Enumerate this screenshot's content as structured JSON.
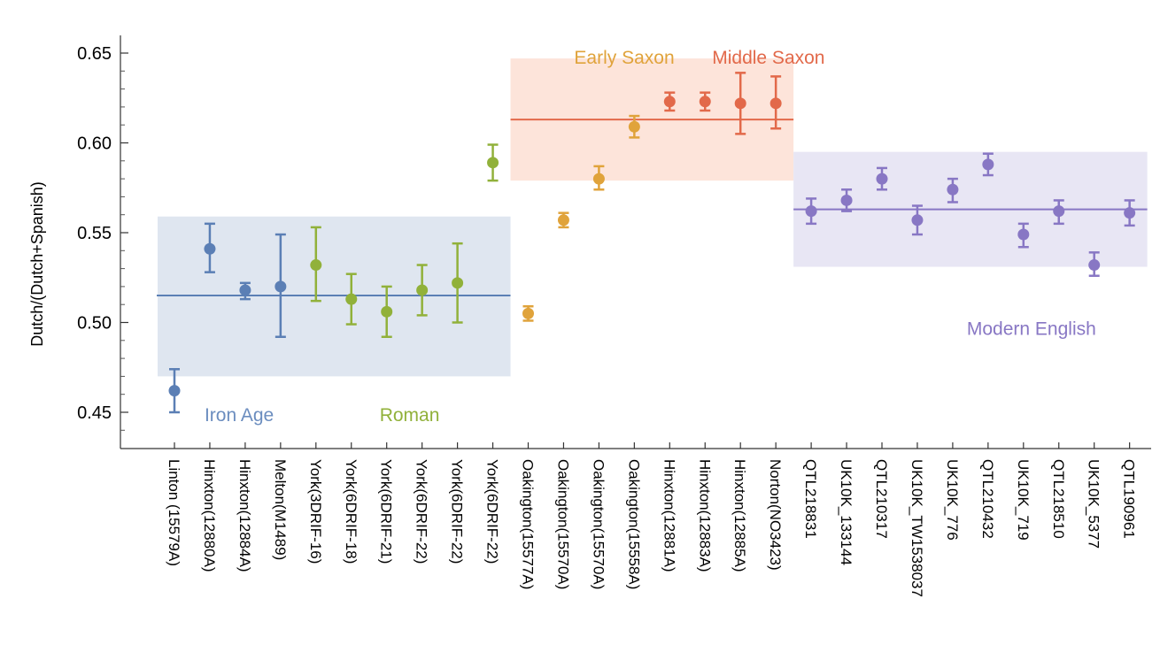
{
  "chart_data": {
    "type": "scatter",
    "ylabel": "Dutch/(Dutch+Spanish)",
    "xlabel": "",
    "ylim": [
      0.43,
      0.665
    ],
    "yticks": [
      0.45,
      0.5,
      0.55,
      0.6,
      0.65
    ],
    "ytick_labels": [
      "0.45",
      "0.50",
      "0.55",
      "0.60",
      "0.65"
    ],
    "grid": false,
    "categories": [
      "Linton (15579A)",
      "Hinxton(12880A)",
      "Hinxton(12884A)",
      "Melton(M1489)",
      "York(3DRIF-16)",
      "York(6DRIF-18)",
      "York(6DRIF-21)",
      "York(6DRIF-22)",
      "York(6DRIF-22)",
      "York(6DRIF-22)",
      "Oakington(15577A)",
      "Oakington(15570A)",
      "Oakington(15570A)",
      "Oakington(15558A)",
      "Hinxton(12881A)",
      "Hinxton(12883A)",
      "Hinxton(12885A)",
      "Norton(NO3423)",
      "QTL218831",
      "UK10K_133144",
      "QTL210317",
      "UK10K_TW1538037",
      "UK10K_776",
      "QTL210432",
      "UK10K_719",
      "QTL218510",
      "UK10K_5377",
      "QTL190961"
    ],
    "series": [
      {
        "name": "Iron Age",
        "color": "#5b7fb5",
        "start": 0,
        "end": 3,
        "values": [
          0.462,
          0.541,
          0.518,
          0.52
        ],
        "err_low": [
          0.45,
          0.528,
          0.513,
          0.492
        ],
        "err_high": [
          0.474,
          0.555,
          0.522,
          0.549
        ]
      },
      {
        "name": "Roman",
        "color": "#91b13a",
        "start": 4,
        "end": 9,
        "values": [
          0.532,
          0.513,
          0.506,
          0.518,
          0.522,
          0.589
        ],
        "err_low": [
          0.512,
          0.499,
          0.492,
          0.504,
          0.5,
          0.579
        ],
        "err_high": [
          0.553,
          0.527,
          0.52,
          0.532,
          0.544,
          0.599
        ]
      },
      {
        "name": "Early Saxon",
        "color": "#e0a33b",
        "start": 10,
        "end": 13,
        "values": [
          0.505,
          0.557,
          0.58,
          0.609
        ],
        "err_low": [
          0.501,
          0.553,
          0.574,
          0.603
        ],
        "err_high": [
          0.509,
          0.561,
          0.587,
          0.615
        ]
      },
      {
        "name": "Middle Saxon",
        "color": "#e2694a",
        "start": 14,
        "end": 17,
        "values": [
          0.623,
          0.623,
          0.622,
          0.622
        ],
        "err_low": [
          0.618,
          0.618,
          0.605,
          0.608
        ],
        "err_high": [
          0.628,
          0.628,
          0.639,
          0.637
        ]
      },
      {
        "name": "Modern English",
        "color": "#8877c4",
        "start": 18,
        "end": 27,
        "values": [
          0.562,
          0.568,
          0.58,
          0.557,
          0.574,
          0.588,
          0.549,
          0.562,
          0.532,
          0.561
        ],
        "err_low": [
          0.555,
          0.562,
          0.574,
          0.549,
          0.567,
          0.582,
          0.542,
          0.555,
          0.526,
          0.554
        ],
        "err_high": [
          0.569,
          0.574,
          0.586,
          0.565,
          0.58,
          0.594,
          0.555,
          0.568,
          0.539,
          0.568
        ]
      }
    ],
    "group_bands": [
      {
        "color": "#dfe6f0",
        "start": -0.5,
        "end": 9.5,
        "mean": 0.515,
        "low": 0.47,
        "high": 0.559,
        "line_color": "#5b7fb5"
      },
      {
        "color": "#fde4da",
        "start": 9.5,
        "end": 17.5,
        "mean": 0.613,
        "low": 0.579,
        "high": 0.647,
        "line_color": "#e2694a"
      },
      {
        "color": "#e8e6f4",
        "start": 17.5,
        "end": 27.5,
        "mean": 0.563,
        "low": 0.531,
        "high": 0.595,
        "line_color": "#8877c4"
      }
    ],
    "annotations": [
      {
        "text": "Iron Age",
        "color": "#6b8dbf",
        "x": 0.85,
        "y": 0.449
      },
      {
        "text": "Roman",
        "color": "#91b13a",
        "x": 5.8,
        "y": 0.449
      },
      {
        "text": "Early Saxon",
        "color": "#e0a33b",
        "x": 11.3,
        "y": 0.648
      },
      {
        "text": "Middle Saxon",
        "color": "#e2694a",
        "x": 15.2,
        "y": 0.648
      },
      {
        "text": "Modern English",
        "color": "#8877c4",
        "x": 22.4,
        "y": 0.497
      }
    ]
  }
}
